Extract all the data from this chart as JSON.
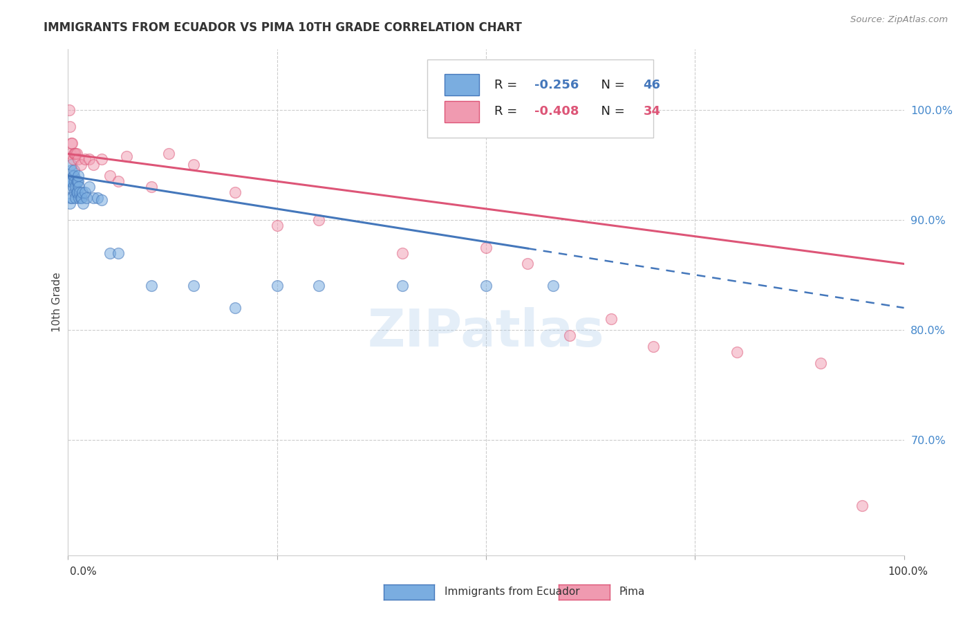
{
  "title": "IMMIGRANTS FROM ECUADOR VS PIMA 10TH GRADE CORRELATION CHART",
  "source": "Source: ZipAtlas.com",
  "ylabel": "10th Grade",
  "legend_blue": {
    "R": -0.256,
    "N": 46,
    "label": "Immigrants from Ecuador"
  },
  "legend_pink": {
    "R": -0.408,
    "N": 34,
    "label": "Pima"
  },
  "right_ytick_values": [
    0.7,
    0.8,
    0.9,
    1.0
  ],
  "right_ytick_labels": [
    "70.0%",
    "80.0%",
    "90.0%",
    "100.0%"
  ],
  "watermark": "ZIPatlas",
  "blue_color": "#7aade0",
  "pink_color": "#f09ab0",
  "blue_line_color": "#4477bb",
  "pink_line_color": "#dd5577",
  "ylim_min": 0.595,
  "ylim_max": 1.055,
  "xlim_min": 0.0,
  "xlim_max": 1.0,
  "blue_x": [
    0.001,
    0.002,
    0.002,
    0.003,
    0.003,
    0.004,
    0.004,
    0.005,
    0.005,
    0.006,
    0.006,
    0.007,
    0.007,
    0.008,
    0.008,
    0.009,
    0.009,
    0.01,
    0.01,
    0.011,
    0.011,
    0.012,
    0.012,
    0.013,
    0.013,
    0.014,
    0.015,
    0.016,
    0.017,
    0.018,
    0.02,
    0.022,
    0.025,
    0.03,
    0.035,
    0.04,
    0.05,
    0.06,
    0.1,
    0.15,
    0.2,
    0.25,
    0.3,
    0.4,
    0.5,
    0.58
  ],
  "blue_y": [
    0.93,
    0.935,
    0.915,
    0.935,
    0.92,
    0.945,
    0.95,
    0.935,
    0.92,
    0.94,
    0.93,
    0.94,
    0.945,
    0.935,
    0.925,
    0.93,
    0.92,
    0.935,
    0.925,
    0.935,
    0.925,
    0.935,
    0.94,
    0.93,
    0.92,
    0.925,
    0.92,
    0.92,
    0.925,
    0.915,
    0.925,
    0.92,
    0.93,
    0.92,
    0.92,
    0.918,
    0.87,
    0.87,
    0.84,
    0.84,
    0.82,
    0.84,
    0.84,
    0.84,
    0.84,
    0.84
  ],
  "pink_x": [
    0.001,
    0.002,
    0.003,
    0.004,
    0.005,
    0.006,
    0.007,
    0.008,
    0.009,
    0.01,
    0.012,
    0.015,
    0.02,
    0.025,
    0.03,
    0.04,
    0.05,
    0.06,
    0.07,
    0.1,
    0.12,
    0.15,
    0.2,
    0.25,
    0.3,
    0.4,
    0.5,
    0.55,
    0.6,
    0.65,
    0.7,
    0.8,
    0.9,
    0.95
  ],
  "pink_y": [
    1.0,
    0.985,
    0.96,
    0.97,
    0.97,
    0.955,
    0.96,
    0.96,
    0.96,
    0.96,
    0.955,
    0.95,
    0.955,
    0.955,
    0.95,
    0.955,
    0.94,
    0.935,
    0.958,
    0.93,
    0.96,
    0.95,
    0.925,
    0.895,
    0.9,
    0.87,
    0.875,
    0.86,
    0.795,
    0.81,
    0.785,
    0.78,
    0.77,
    0.64
  ],
  "blue_trend_x0": 0.0,
  "blue_trend_x_solid_end": 0.55,
  "blue_trend_x1": 1.0,
  "blue_trend_y0": 0.94,
  "blue_trend_y1": 0.82,
  "pink_trend_x0": 0.0,
  "pink_trend_x1": 1.0,
  "pink_trend_y0": 0.96,
  "pink_trend_y1": 0.86
}
